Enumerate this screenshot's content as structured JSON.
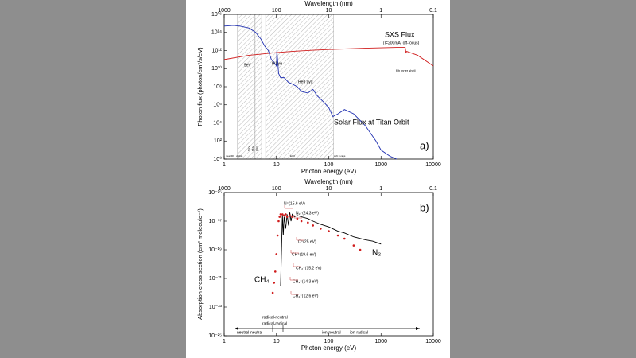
{
  "chart_data": [
    {
      "type": "line",
      "xlabel": "Photon energy (eV)",
      "ylabel": "Photon flux (photon/cm²/s/eV)",
      "x2label": "Wavelength (nm)",
      "panel_label": "a)",
      "xlog": true,
      "ylog": true,
      "xlim": [
        1,
        10000
      ],
      "ylim": [
        1,
        1e+16
      ],
      "xticks": [
        1,
        10,
        100,
        1000,
        10000
      ],
      "yticks": [
        {
          "value": 1,
          "label": "10⁰"
        },
        {
          "value": 100,
          "label": "10²"
        },
        {
          "value": 10000,
          "label": "10⁴"
        },
        {
          "value": 1000000,
          "label": "10⁶"
        },
        {
          "value": 100000000,
          "label": "10⁸"
        },
        {
          "value": 10000000000,
          "label": "10¹⁰"
        },
        {
          "value": 1000000000000,
          "label": "10¹²"
        },
        {
          "value": 100000000000000,
          "label": "10¹⁴"
        },
        {
          "value": 1e+16,
          "label": "10¹⁶"
        }
      ],
      "x2lim": [
        1000,
        0.1
      ],
      "x2ticks": [
        1000,
        100,
        10,
        1,
        0.1
      ],
      "shaded_ranges": [
        [
          1.8,
          3.1
        ],
        [
          3.1,
          3.9
        ],
        [
          3.9,
          4.4
        ],
        [
          4.4,
          5.2
        ],
        [
          6.2,
          124
        ]
      ],
      "series": [
        {
          "name": "SXS Flux",
          "color": "#d01c1c",
          "mode": "line",
          "x": [
            1,
            2,
            3,
            5,
            10,
            20,
            50,
            100,
            200,
            500,
            1000,
            2000,
            2900,
            3000,
            3100,
            5000,
            10000
          ],
          "values": [
            100000000000,
            200000000000,
            300000000000,
            400000000000,
            600000000000,
            800000000000,
            1100000000000,
            1300000000000,
            1500000000000,
            1800000000000,
            2000000000000,
            2200000000000,
            2200000000000,
            600000000000,
            800000000000,
            300000000000,
            20000000000
          ]
        },
        {
          "name": "Solar Flux at Titan Orbit",
          "color": "#1f2fb0",
          "mode": "line",
          "x": [
            1,
            1.5,
            2,
            3,
            4,
            5,
            6,
            7,
            8,
            9,
            10,
            10.2,
            11,
            12,
            14,
            17,
            20,
            25,
            30,
            40,
            50,
            60,
            80,
            100,
            120,
            150,
            200,
            300,
            500,
            800,
            1000,
            1500,
            2000
          ],
          "values": [
            500000000000000,
            600000000000000,
            500000000000000,
            300000000000000,
            100000000000000,
            20000000000000,
            3000000000000,
            1000000000000,
            100000000000,
            50000000000,
            20000000000,
            1000000000000,
            3000000000,
            1000000000,
            1000000000,
            300000000,
            200000000,
            100000000,
            30000000,
            20000000,
            50000000,
            10000000,
            2000000,
            500000,
            50000,
            100000,
            300000,
            100000,
            5000,
            100,
            10,
            2,
            1
          ]
        }
      ],
      "annotations": [
        {
          "text": "(I=200mA, off-focus)",
          "color": "#d01c1c"
        },
        {
          "text": "H Lyα",
          "color": "#1f2fb0"
        },
        {
          "text": "HeII Lyα",
          "color": "#1f2fb0"
        },
        {
          "text": "5eV",
          "color": "#000000"
        },
        {
          "text": "Rh inner shell",
          "color": "#000000"
        },
        {
          "text": "near IR",
          "color": "#000000"
        },
        {
          "text": "visible",
          "color": "#000000"
        },
        {
          "text": "NUV",
          "color": "#000000"
        },
        {
          "text": "MUV",
          "color": "#000000"
        },
        {
          "text": "FUV",
          "color": "#000000"
        },
        {
          "text": "EUV",
          "color": "#000000"
        },
        {
          "text": "soft X-rays",
          "color": "#000000"
        }
      ]
    },
    {
      "type": "line",
      "xlabel": "Photon energy (eV)",
      "ylabel": "Absorption cross section (cm² molecule⁻¹)",
      "x2label": "Wavelength (nm)",
      "panel_label": "b)",
      "xlog": true,
      "ylog": true,
      "xlim": [
        1,
        10000
      ],
      "ylim": [
        1e-25,
        1e-15
      ],
      "xticks": [
        1,
        10,
        100,
        1000,
        10000
      ],
      "yticks": [
        {
          "value": 1e-25,
          "label": "10⁻²⁵"
        },
        {
          "value": 1e-23,
          "label": "10⁻²³"
        },
        {
          "value": 1e-21,
          "label": "10⁻²¹"
        },
        {
          "value": 1e-19,
          "label": "10⁻¹⁹"
        },
        {
          "value": 1e-17,
          "label": "10⁻¹⁷"
        },
        {
          "value": 1e-15,
          "label": "10⁻¹⁵"
        }
      ],
      "x2lim": [
        1000,
        0.1
      ],
      "x2ticks": [
        1000,
        100,
        10,
        1,
        0.1
      ],
      "series": [
        {
          "name": "N₂",
          "color": "#000000",
          "mode": "line",
          "x": [
            12,
            12.5,
            13,
            13.5,
            14,
            15,
            16,
            17,
            18,
            19,
            20,
            22,
            25,
            30,
            40,
            50,
            70,
            100,
            150,
            200,
            300,
            500,
            700,
            1000
          ],
          "values": [
            3e-22,
            1e-19,
            3e-17,
            1e-18,
            2e-17,
            3e-18,
            3e-17,
            5e-18,
            4e-17,
            1e-17,
            3e-17,
            2e-17,
            2.5e-17,
            2e-17,
            1.5e-17,
            1e-17,
            6e-18,
            4e-18,
            2e-18,
            1.5e-18,
            8e-19,
            5e-19,
            4e-19,
            2.5e-19
          ]
        },
        {
          "name": "CH₄",
          "color": "#d01c1c",
          "mode": "markers",
          "x": [
            8.5,
            9,
            9.5,
            10,
            10.5,
            11,
            11.5,
            12,
            13,
            14,
            15,
            16,
            18,
            20,
            25,
            30,
            40,
            50,
            70,
            100,
            150,
            200,
            300,
            400
          ],
          "values": [
            1e-22,
            5e-22,
            3e-21,
            5e-20,
            1e-18,
            1e-17,
            2e-17,
            3e-17,
            3e-17,
            2.5e-17,
            3e-17,
            2e-17,
            2.5e-17,
            2e-17,
            1.5e-17,
            1e-17,
            8e-18,
            5e-18,
            3e-18,
            2e-18,
            1e-18,
            6e-19,
            2e-19,
            1e-19
          ]
        }
      ],
      "annotations": [
        {
          "text": "N⁺(15.6 eV)",
          "color": "#000000"
        },
        {
          "text": "N₂⁺(24.3 eV)",
          "color": "#000000"
        },
        {
          "text": "C⁺(25 eV)",
          "color": "#d01c1c"
        },
        {
          "text": "CH⁺(19.6 eV)",
          "color": "#d01c1c"
        },
        {
          "text": "CH₂⁺(15.2 eV)",
          "color": "#d01c1c"
        },
        {
          "text": "CH₃⁺(14.3 eV)",
          "color": "#d01c1c"
        },
        {
          "text": "CH₄⁺(12.6 eV)",
          "color": "#d01c1c"
        },
        {
          "text": "radical-neutral",
          "color": "#000000"
        },
        {
          "text": "radical-radical",
          "color": "#000000"
        },
        {
          "text": "neutral-neutral",
          "color": "#000000"
        },
        {
          "text": "ion-neutral",
          "color": "#000000"
        },
        {
          "text": "ion-radical",
          "color": "#000000"
        }
      ]
    }
  ]
}
